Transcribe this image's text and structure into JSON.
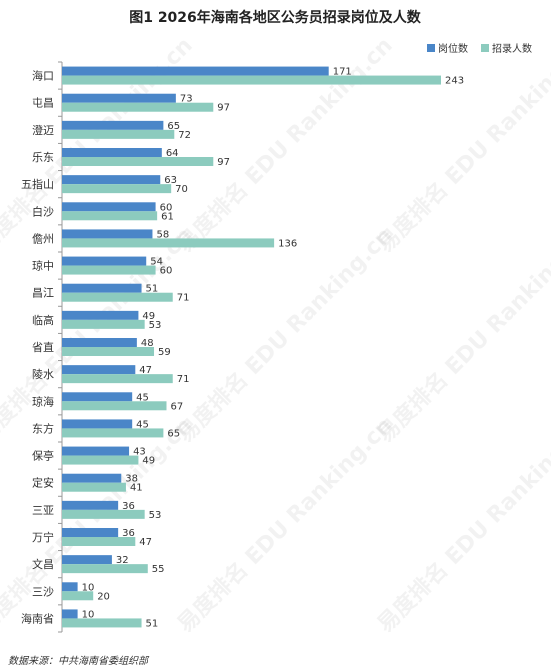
{
  "chart_data": {
    "type": "bar",
    "orientation": "horizontal",
    "title": "图1  2026年海南各地区公务员招录岗位及人数",
    "categories": [
      "海口",
      "屯昌",
      "澄迈",
      "乐东",
      "五指山",
      "白沙",
      "儋州",
      "琼中",
      "昌江",
      "临高",
      "省直",
      "陵水",
      "琼海",
      "东方",
      "保亭",
      "定安",
      "三亚",
      "万宁",
      "文昌",
      "三沙",
      "海南省"
    ],
    "series": [
      {
        "name": "岗位数",
        "color": "#4a86c8",
        "values": [
          171,
          73,
          65,
          64,
          63,
          60,
          58,
          54,
          51,
          49,
          48,
          47,
          45,
          45,
          43,
          38,
          36,
          36,
          32,
          10,
          10
        ]
      },
      {
        "name": "招录人数",
        "color": "#8ccbbe",
        "values": [
          243,
          97,
          72,
          97,
          70,
          61,
          136,
          60,
          71,
          53,
          59,
          71,
          67,
          65,
          49,
          41,
          53,
          47,
          55,
          20,
          51
        ]
      }
    ],
    "xlim": [
      0,
      260
    ],
    "grid": false,
    "legend_position": "top-right",
    "data_labels": true
  },
  "source": "数据来源：中共海南省委组织部",
  "watermark": "易度排名 EDU Ranking.cn"
}
